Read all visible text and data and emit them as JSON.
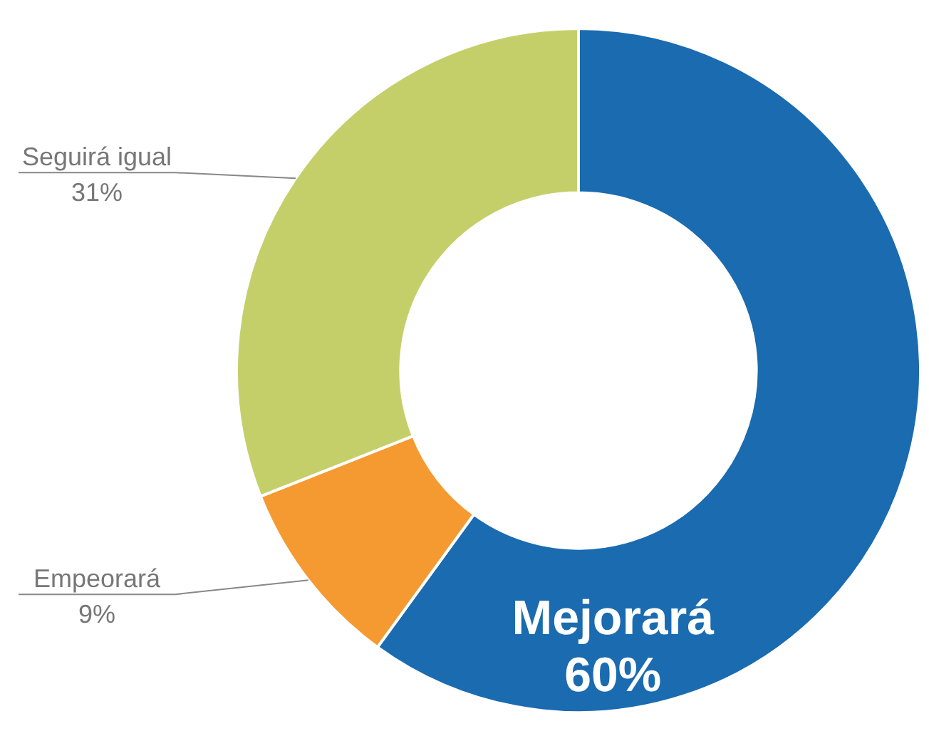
{
  "chart_data": {
    "type": "donut",
    "categories": [
      "Mejorará",
      "Empeorará",
      "Seguirá igual"
    ],
    "values": [
      60,
      9,
      31
    ],
    "value_labels": [
      "60%",
      "9%",
      "31%"
    ],
    "colors": [
      "#1a6bb0",
      "#f59a30",
      "#c5cf6a"
    ],
    "legend": false
  }
}
